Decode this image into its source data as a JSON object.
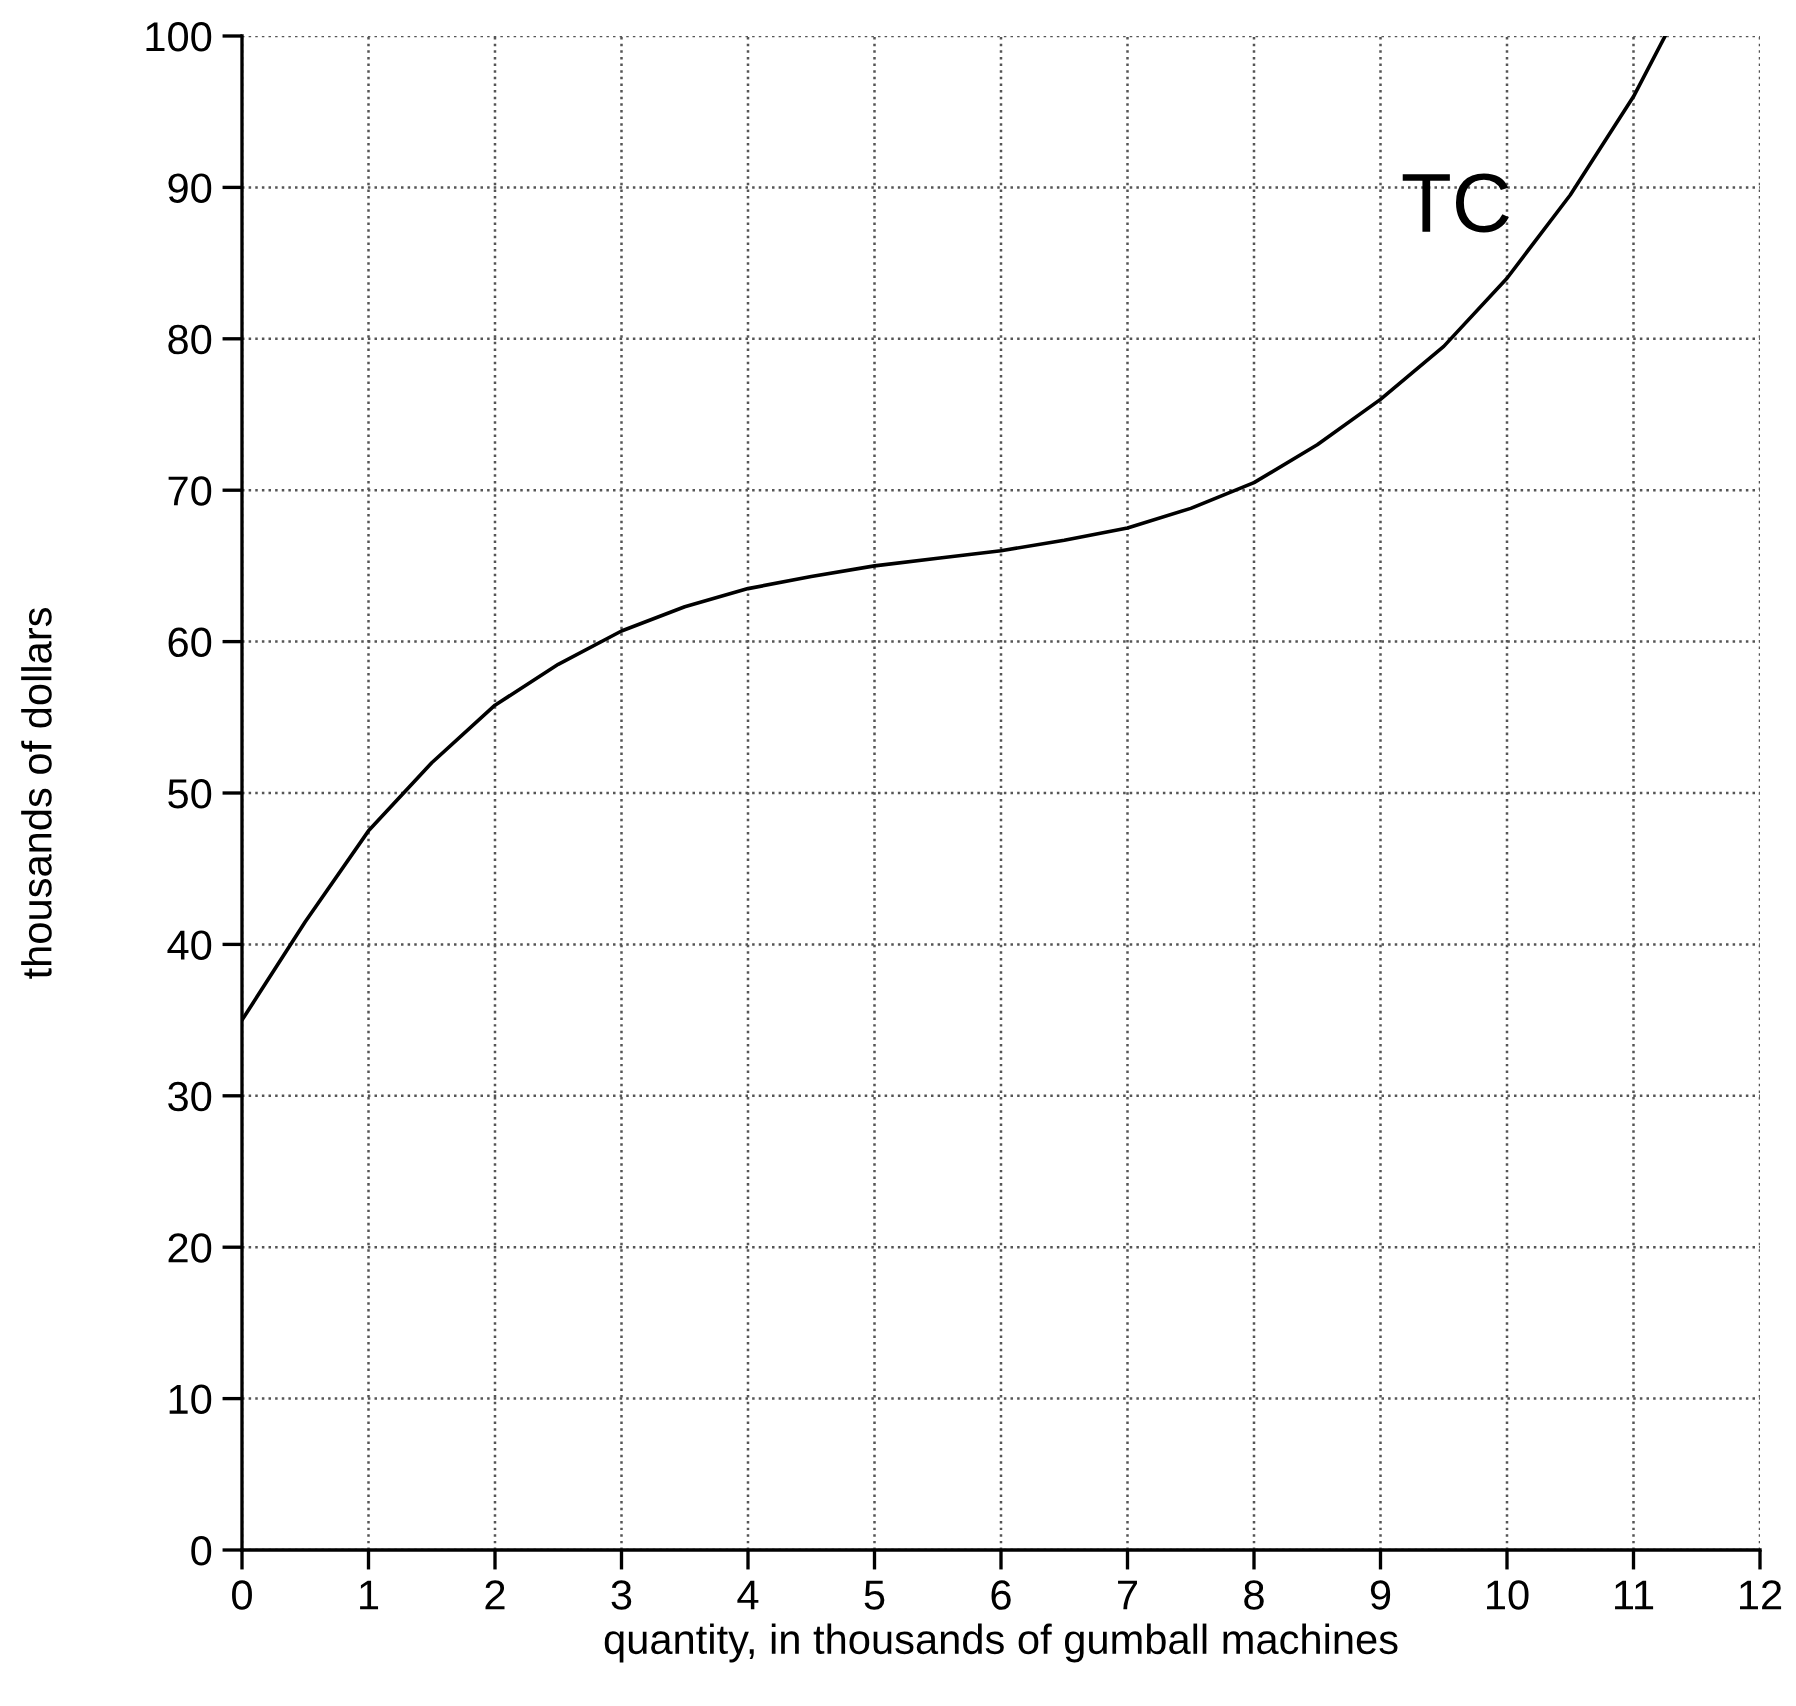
{
  "chart_data": {
    "type": "line",
    "xlabel": "quantity, in thousands of gumball machines",
    "ylabel": "thousands of dollars",
    "series": [
      {
        "name": "TC",
        "color": "#000000",
        "x": [
          0,
          0.5,
          1,
          1.5,
          2,
          2.5,
          3,
          3.5,
          4,
          4.5,
          5,
          5.5,
          6,
          6.5,
          7,
          7.5,
          8,
          8.5,
          9,
          9.5,
          10,
          10.5,
          11,
          11.25
        ],
        "values": [
          35,
          41.5,
          47.5,
          52,
          55.8,
          58.5,
          60.7,
          62.3,
          63.5,
          64.3,
          65,
          65.5,
          66,
          66.7,
          67.5,
          68.8,
          70.5,
          73,
          76,
          79.5,
          84,
          89.5,
          96,
          100
        ]
      }
    ],
    "xlim": [
      0,
      12
    ],
    "ylim": [
      0,
      100
    ],
    "xticks": [
      0,
      1,
      2,
      3,
      4,
      5,
      6,
      7,
      8,
      9,
      10,
      11,
      12
    ],
    "yticks": [
      0,
      10,
      20,
      30,
      40,
      50,
      60,
      70,
      80,
      90,
      100
    ],
    "grid": true,
    "marker": "none",
    "line_style": "solid",
    "legend": false
  }
}
